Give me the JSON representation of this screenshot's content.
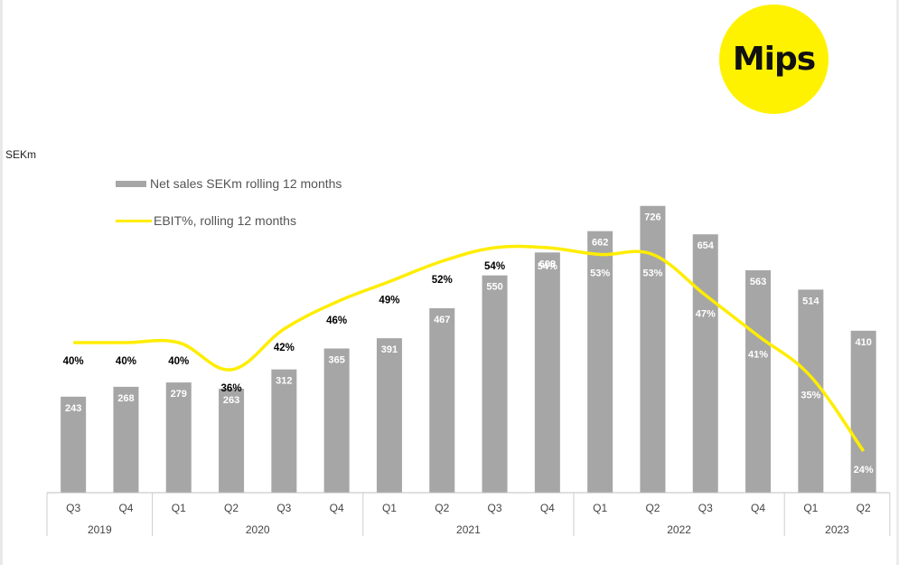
{
  "logo": {
    "text": "Mips"
  },
  "chart_data": {
    "type": "bar",
    "unit_label": "SEKm",
    "legend": {
      "bar": "Net sales SEKm rolling 12 months",
      "line": "EBIT%, rolling 12 months"
    },
    "categories": [
      "Q3",
      "Q4",
      "Q1",
      "Q2",
      "Q3",
      "Q4",
      "Q1",
      "Q2",
      "Q3",
      "Q4",
      "Q1",
      "Q2",
      "Q3",
      "Q4",
      "Q1",
      "Q2"
    ],
    "years": [
      {
        "label": "2019",
        "span": 2
      },
      {
        "label": "2020",
        "span": 4
      },
      {
        "label": "2021",
        "span": 4
      },
      {
        "label": "2022",
        "span": 4
      },
      {
        "label": "2023",
        "span": 2
      }
    ],
    "series": [
      {
        "name": "Net sales SEKm rolling 12 months",
        "type": "bar",
        "color": "#a6a6a6",
        "values": [
          243,
          268,
          279,
          263,
          312,
          365,
          391,
          467,
          550,
          608,
          662,
          726,
          654,
          563,
          514,
          410
        ]
      },
      {
        "name": "EBIT%, rolling 12 months",
        "type": "line",
        "color": "#ffed00",
        "values": [
          40,
          40,
          40,
          36,
          42,
          46,
          49,
          52,
          54,
          54,
          53,
          53,
          47,
          41,
          35,
          24
        ]
      }
    ]
  }
}
